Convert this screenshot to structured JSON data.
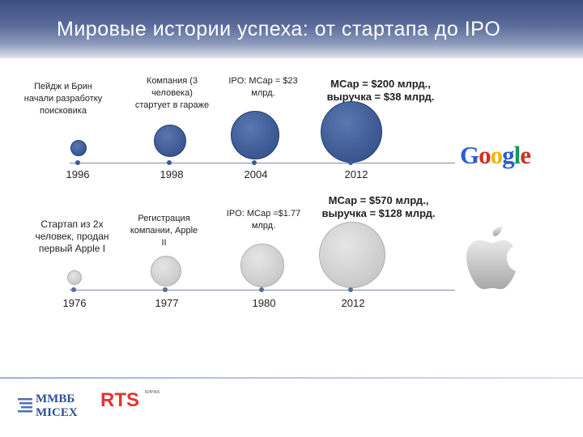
{
  "title": "Мировые истории успеха:  от стартапа  до IPO",
  "google": {
    "labels": [
      "Пейдж и Брин начали разработку поисковика",
      "Компания (3 человека) стартует в гараже",
      "IPO: MCap = $23 млрд.",
      "MCap = $200 млрд., выручка = $38 млрд."
    ],
    "years": [
      "1996",
      "1998",
      "2004",
      "2012"
    ],
    "logo_letters": [
      "G",
      "o",
      "o",
      "g",
      "l",
      "e"
    ],
    "colors": {
      "circle": "#3e5b95",
      "axis": "#7d8aa8",
      "dot": "#3e5b95"
    }
  },
  "apple": {
    "labels": [
      "Стартап из 2х человек, продан первый  Apple I",
      "Регистрация компании, Apple II",
      "IPO: MCap =$1.77 млрд.",
      "MCap = $570 млрд., выручка = $128 млрд."
    ],
    "years": [
      "1976",
      "1977",
      "1980",
      "2012"
    ],
    "colors": {
      "circle": "#cfcfcf",
      "axis": "#7d8aa8",
      "dot": "#5a6e96"
    }
  },
  "footer": {
    "micex_line1": "ММВБ",
    "micex_line2": "MICEX",
    "rts_text": "RTS",
    "rts_sub": "БИРЖА"
  }
}
